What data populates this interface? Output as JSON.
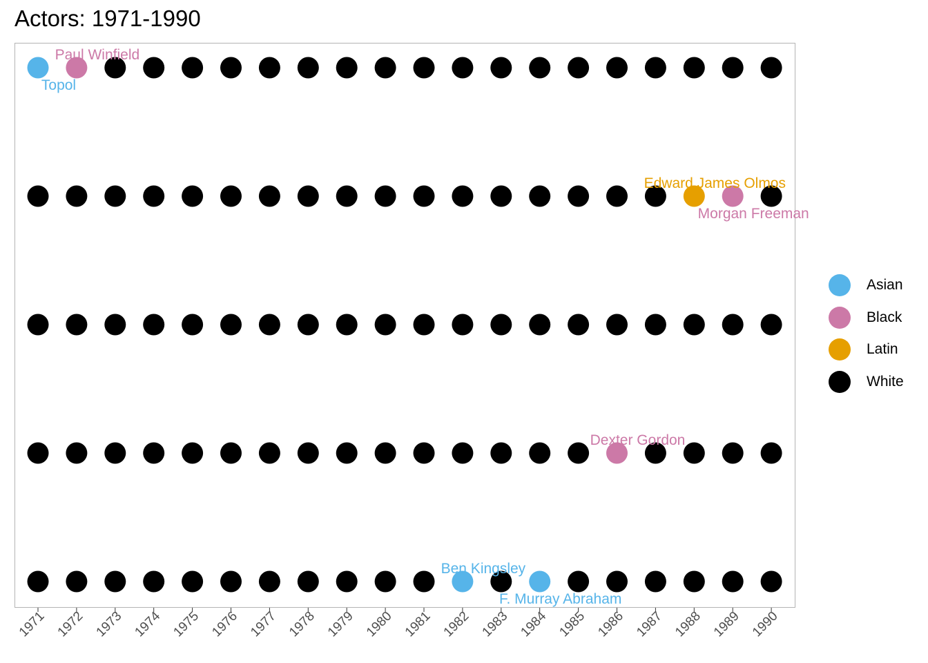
{
  "chart_data": {
    "type": "scatter",
    "title": "Actors: 1971-1990",
    "x": [
      "1971",
      "1972",
      "1973",
      "1974",
      "1975",
      "1976",
      "1977",
      "1978",
      "1979",
      "1980",
      "1981",
      "1982",
      "1983",
      "1984",
      "1985",
      "1986",
      "1987",
      "1988",
      "1989",
      "1990"
    ],
    "rows": 5,
    "grid": false,
    "legend_position": "right",
    "categories": [
      "Asian",
      "Black",
      "Latin",
      "White"
    ],
    "colors": {
      "Asian": "#56B4E9",
      "Black": "#CC79A7",
      "Latin": "#E69F00",
      "White": "#000000"
    },
    "default_category": "White",
    "highlights": [
      {
        "year": "1971",
        "row": 5,
        "category": "Asian",
        "label": "Topol",
        "label_pos": "below"
      },
      {
        "year": "1972",
        "row": 5,
        "category": "Black",
        "label": "Paul Winfield",
        "label_pos": "above"
      },
      {
        "year": "1988",
        "row": 4,
        "category": "Latin",
        "label": "Edward James Olmos",
        "label_pos": "above"
      },
      {
        "year": "1989",
        "row": 4,
        "category": "Black",
        "label": "Morgan Freeman",
        "label_pos": "below"
      },
      {
        "year": "1986",
        "row": 2,
        "category": "Black",
        "label": "Dexter Gordon",
        "label_pos": "above"
      },
      {
        "year": "1982",
        "row": 1,
        "category": "Asian",
        "label": "Ben Kingsley",
        "label_pos": "above"
      },
      {
        "year": "1984",
        "row": 1,
        "category": "Asian",
        "label": "F. Murray Abraham",
        "label_pos": "below"
      }
    ]
  }
}
